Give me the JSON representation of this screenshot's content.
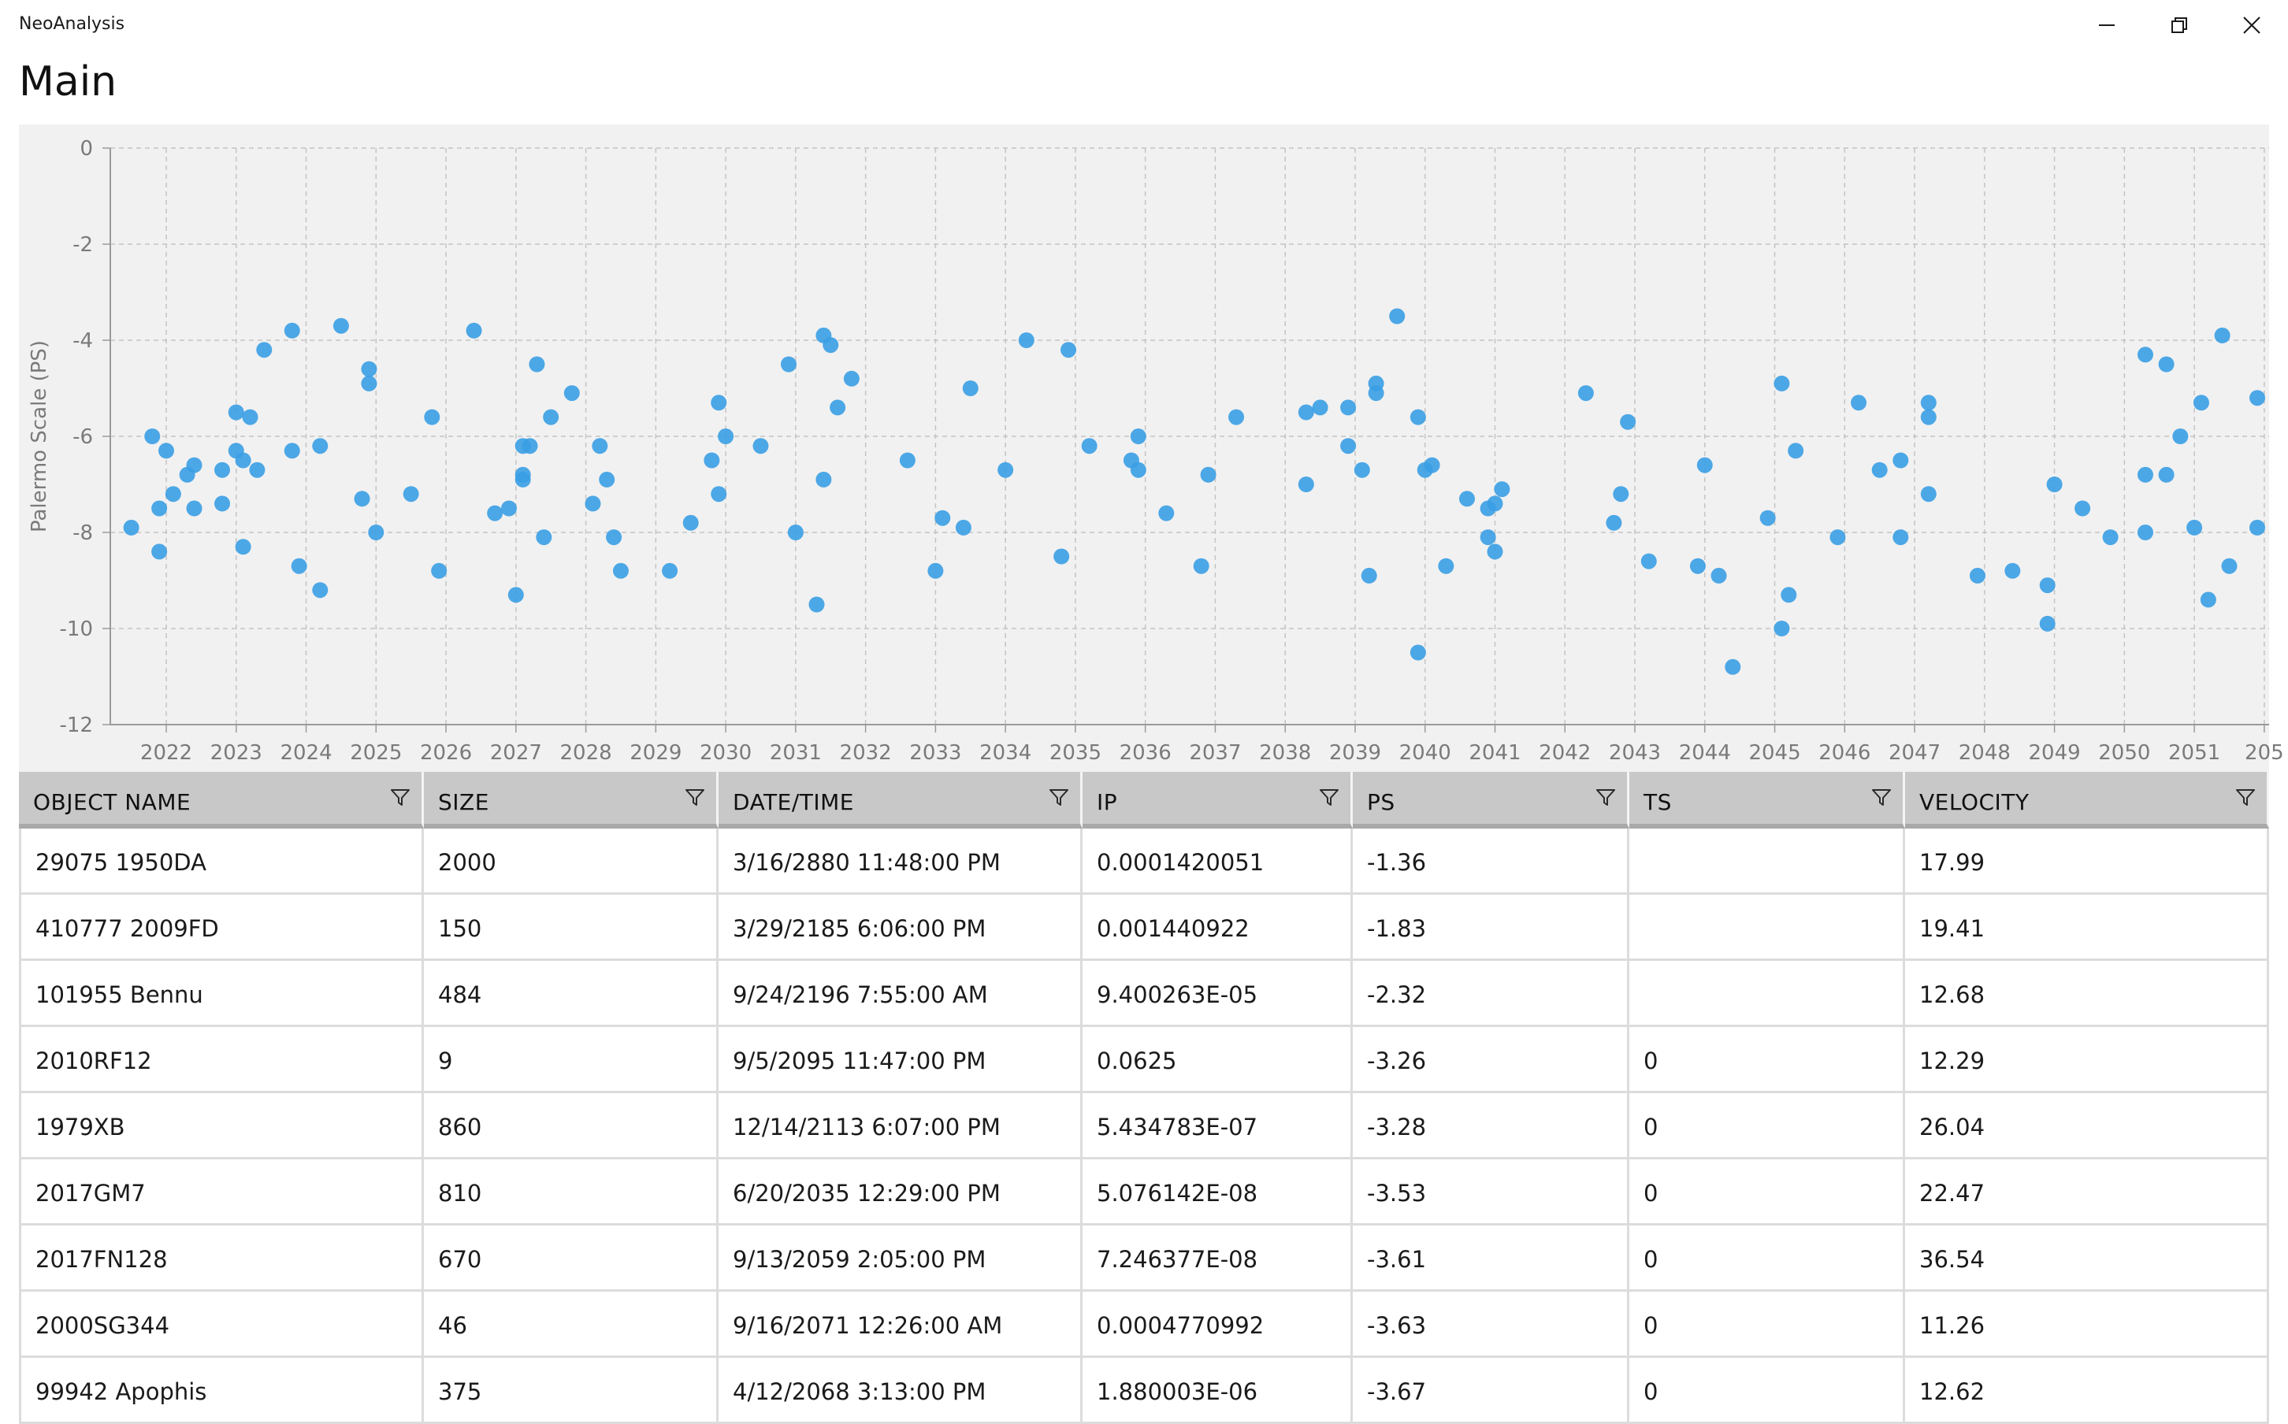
{
  "window": {
    "app_title": "NeoAnalysis",
    "page_title": "Main"
  },
  "chart_data": {
    "type": "scatter",
    "ylabel": "Palermo Scale (PS)",
    "xlabel": "",
    "ylim": [
      -12,
      0
    ],
    "xlim": [
      2021.2,
      2051.9
    ],
    "yticks": [
      "0",
      "-2",
      "-4",
      "-6",
      "-8",
      "-10",
      "-12"
    ],
    "xticks": [
      "2022",
      "2023",
      "2024",
      "2025",
      "2026",
      "2027",
      "2028",
      "2029",
      "2030",
      "2031",
      "2032",
      "2033",
      "2034",
      "2035",
      "2036",
      "2037",
      "2038",
      "2039",
      "2040",
      "2041",
      "2042",
      "2043",
      "2044",
      "2045",
      "2046",
      "2047",
      "2048",
      "2049",
      "2050",
      "2051",
      "205"
    ],
    "grid": true,
    "color": "#3a9ee4",
    "points": [
      [
        2021.5,
        -7.9
      ],
      [
        2021.8,
        -6.0
      ],
      [
        2021.9,
        -8.4
      ],
      [
        2021.9,
        -7.5
      ],
      [
        2022.0,
        -6.3
      ],
      [
        2022.1,
        -7.2
      ],
      [
        2022.3,
        -6.8
      ],
      [
        2022.4,
        -7.5
      ],
      [
        2022.4,
        -6.6
      ],
      [
        2022.8,
        -7.4
      ],
      [
        2022.8,
        -6.7
      ],
      [
        2023.0,
        -6.3
      ],
      [
        2023.0,
        -5.5
      ],
      [
        2023.1,
        -8.3
      ],
      [
        2023.1,
        -6.5
      ],
      [
        2023.2,
        -5.6
      ],
      [
        2023.3,
        -6.7
      ],
      [
        2023.4,
        -4.2
      ],
      [
        2023.8,
        -3.8
      ],
      [
        2023.8,
        -6.3
      ],
      [
        2023.9,
        -8.7
      ],
      [
        2024.2,
        -6.2
      ],
      [
        2024.2,
        -9.2
      ],
      [
        2024.5,
        -3.7
      ],
      [
        2024.8,
        -7.3
      ],
      [
        2024.9,
        -4.9
      ],
      [
        2024.9,
        -4.6
      ],
      [
        2025.0,
        -8.0
      ],
      [
        2025.5,
        -7.2
      ],
      [
        2025.8,
        -5.6
      ],
      [
        2025.9,
        -8.8
      ],
      [
        2026.4,
        -3.8
      ],
      [
        2026.7,
        -7.6
      ],
      [
        2026.9,
        -7.5
      ],
      [
        2027.0,
        -9.3
      ],
      [
        2027.1,
        -6.9
      ],
      [
        2027.1,
        -6.8
      ],
      [
        2027.1,
        -6.2
      ],
      [
        2027.2,
        -6.2
      ],
      [
        2027.3,
        -4.5
      ],
      [
        2027.4,
        -8.1
      ],
      [
        2027.5,
        -5.6
      ],
      [
        2027.8,
        -5.1
      ],
      [
        2028.1,
        -7.4
      ],
      [
        2028.2,
        -6.2
      ],
      [
        2028.3,
        -6.9
      ],
      [
        2028.4,
        -8.1
      ],
      [
        2028.5,
        -8.8
      ],
      [
        2029.2,
        -8.8
      ],
      [
        2029.5,
        -7.8
      ],
      [
        2029.8,
        -6.5
      ],
      [
        2029.9,
        -7.2
      ],
      [
        2029.9,
        -5.3
      ],
      [
        2030.0,
        -6.0
      ],
      [
        2030.5,
        -6.2
      ],
      [
        2030.9,
        -4.5
      ],
      [
        2031.0,
        -8.0
      ],
      [
        2031.3,
        -9.5
      ],
      [
        2031.4,
        -3.9
      ],
      [
        2031.4,
        -6.9
      ],
      [
        2031.5,
        -4.1
      ],
      [
        2031.6,
        -5.4
      ],
      [
        2031.8,
        -4.8
      ],
      [
        2032.6,
        -6.5
      ],
      [
        2033.0,
        -8.8
      ],
      [
        2033.1,
        -7.7
      ],
      [
        2033.4,
        -7.9
      ],
      [
        2033.5,
        -5.0
      ],
      [
        2034.0,
        -6.7
      ],
      [
        2034.3,
        -4.0
      ],
      [
        2034.8,
        -8.5
      ],
      [
        2034.9,
        -4.2
      ],
      [
        2035.2,
        -6.2
      ],
      [
        2035.8,
        -6.5
      ],
      [
        2035.9,
        -6.0
      ],
      [
        2035.9,
        -6.7
      ],
      [
        2036.3,
        -7.6
      ],
      [
        2036.8,
        -8.7
      ],
      [
        2036.9,
        -6.8
      ],
      [
        2037.3,
        -5.6
      ],
      [
        2038.3,
        -7.0
      ],
      [
        2038.3,
        -5.5
      ],
      [
        2038.5,
        -5.4
      ],
      [
        2038.9,
        -5.4
      ],
      [
        2038.9,
        -6.2
      ],
      [
        2039.1,
        -6.7
      ],
      [
        2039.2,
        -8.9
      ],
      [
        2039.3,
        -4.9
      ],
      [
        2039.3,
        -5.1
      ],
      [
        2039.6,
        -3.5
      ],
      [
        2039.9,
        -10.5
      ],
      [
        2039.9,
        -5.6
      ],
      [
        2040.0,
        -6.7
      ],
      [
        2040.1,
        -6.6
      ],
      [
        2040.3,
        -8.7
      ],
      [
        2040.6,
        -7.3
      ],
      [
        2040.9,
        -8.1
      ],
      [
        2040.9,
        -7.5
      ],
      [
        2041.0,
        -7.4
      ],
      [
        2041.0,
        -8.4
      ],
      [
        2041.1,
        -7.1
      ],
      [
        2042.3,
        -5.1
      ],
      [
        2042.7,
        -7.8
      ],
      [
        2042.8,
        -7.2
      ],
      [
        2042.9,
        -5.7
      ],
      [
        2043.2,
        -8.6
      ],
      [
        2043.9,
        -8.7
      ],
      [
        2044.0,
        -6.6
      ],
      [
        2044.2,
        -8.9
      ],
      [
        2044.4,
        -10.8
      ],
      [
        2044.9,
        -7.7
      ],
      [
        2045.1,
        -10.0
      ],
      [
        2045.1,
        -4.9
      ],
      [
        2045.2,
        -9.3
      ],
      [
        2045.3,
        -6.3
      ],
      [
        2045.9,
        -8.1
      ],
      [
        2046.2,
        -5.3
      ],
      [
        2046.5,
        -6.7
      ],
      [
        2046.8,
        -8.1
      ],
      [
        2046.8,
        -6.5
      ],
      [
        2047.2,
        -7.2
      ],
      [
        2047.2,
        -5.6
      ],
      [
        2047.2,
        -5.3
      ],
      [
        2047.9,
        -8.9
      ],
      [
        2048.4,
        -8.8
      ],
      [
        2048.9,
        -9.9
      ],
      [
        2048.9,
        -9.1
      ],
      [
        2049.0,
        -7.0
      ],
      [
        2049.4,
        -7.5
      ],
      [
        2049.8,
        -8.1
      ],
      [
        2050.3,
        -4.3
      ],
      [
        2050.3,
        -6.8
      ],
      [
        2050.3,
        -8.0
      ],
      [
        2050.6,
        -4.5
      ],
      [
        2050.6,
        -6.8
      ],
      [
        2050.8,
        -6.0
      ],
      [
        2051.0,
        -7.9
      ],
      [
        2051.1,
        -5.3
      ],
      [
        2051.2,
        -9.4
      ],
      [
        2051.4,
        -3.9
      ],
      [
        2051.5,
        -8.7
      ],
      [
        2051.9,
        -7.9
      ],
      [
        2051.9,
        -5.2
      ]
    ]
  },
  "table": {
    "columns": [
      "OBJECT NAME",
      "SIZE",
      "DATE/TIME",
      "IP",
      "PS",
      "TS",
      "VELOCITY"
    ],
    "rows": [
      [
        "29075 1950DA",
        "2000",
        "3/16/2880 11:48:00 PM",
        "0.0001420051",
        "-1.36",
        "",
        "17.99"
      ],
      [
        "410777 2009FD",
        "150",
        "3/29/2185 6:06:00 PM",
        "0.001440922",
        "-1.83",
        "",
        "19.41"
      ],
      [
        "101955 Bennu",
        "484",
        "9/24/2196 7:55:00 AM",
        "9.400263E-05",
        "-2.32",
        "",
        "12.68"
      ],
      [
        "2010RF12",
        "9",
        "9/5/2095 11:47:00 PM",
        "0.0625",
        "-3.26",
        "0",
        "12.29"
      ],
      [
        "1979XB",
        "860",
        "12/14/2113 6:07:00 PM",
        "5.434783E-07",
        "-3.28",
        "0",
        "26.04"
      ],
      [
        "2017GM7",
        "810",
        "6/20/2035 12:29:00 PM",
        "5.076142E-08",
        "-3.53",
        "0",
        "22.47"
      ],
      [
        "2017FN128",
        "670",
        "9/13/2059 2:05:00 PM",
        "7.246377E-08",
        "-3.61",
        "0",
        "36.54"
      ],
      [
        "2000SG344",
        "46",
        "9/16/2071 12:26:00 AM",
        "0.0004770992",
        "-3.63",
        "0",
        "11.26"
      ],
      [
        "99942 Apophis",
        "375",
        "4/12/2068 3:13:00 PM",
        "1.880003E-06",
        "-3.67",
        "0",
        "12.62"
      ]
    ]
  }
}
